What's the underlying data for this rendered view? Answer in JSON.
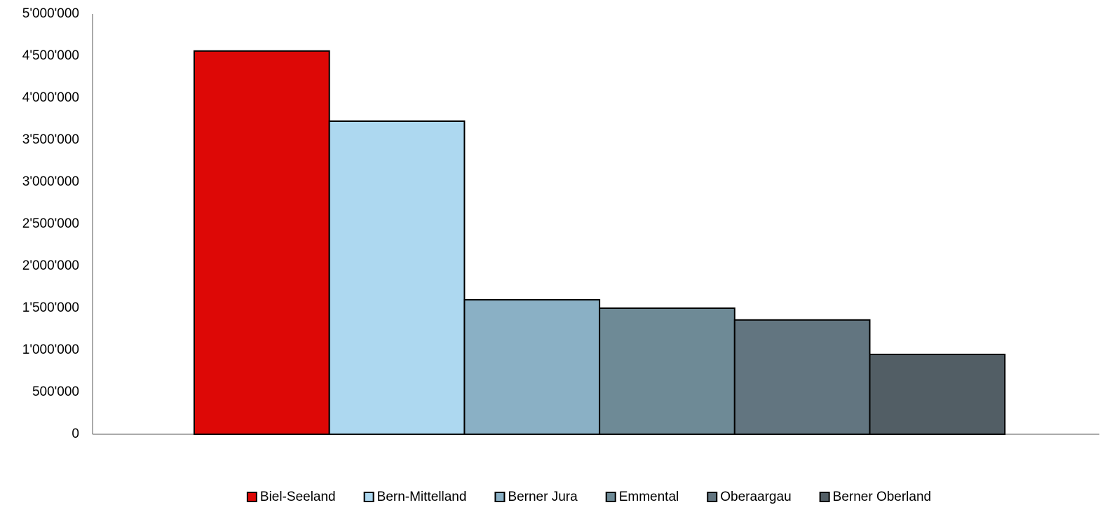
{
  "chart_data": {
    "type": "bar",
    "series": [
      {
        "name": "Biel-Seeland",
        "color": "#dd0806",
        "values": [
          4560000
        ]
      },
      {
        "name": "Bern-Mittelland",
        "color": "#add8f0",
        "values": [
          3725000
        ]
      },
      {
        "name": "Berner Jura",
        "color": "#8ab0c5",
        "values": [
          1600000
        ]
      },
      {
        "name": "Emmental",
        "color": "#6e8a96",
        "values": [
          1500000
        ]
      },
      {
        "name": "Oberaargau",
        "color": "#627580",
        "values": [
          1360000
        ]
      },
      {
        "name": "Berner Oberland",
        "color": "#525e65",
        "values": [
          950000
        ]
      }
    ],
    "ylim": [
      0,
      5000000
    ],
    "yticks": [
      0,
      {
        "value": 500000,
        "label": "500'000"
      },
      {
        "value": 1000000,
        "label": "1'000'000"
      },
      {
        "value": 1500000,
        "label": "1'500'000"
      },
      {
        "value": 2000000,
        "label": "2'000'000"
      },
      {
        "value": 2500000,
        "label": "2'500'000"
      },
      {
        "value": 3000000,
        "label": "3'000'000"
      },
      {
        "value": 3500000,
        "label": "3'500'000"
      },
      {
        "value": 4000000,
        "label": "4'000'000"
      },
      {
        "value": 4500000,
        "label": "4'500'000"
      },
      {
        "value": 5000000,
        "label": "5'000'000"
      }
    ],
    "grid": false,
    "legend": "bottom"
  }
}
